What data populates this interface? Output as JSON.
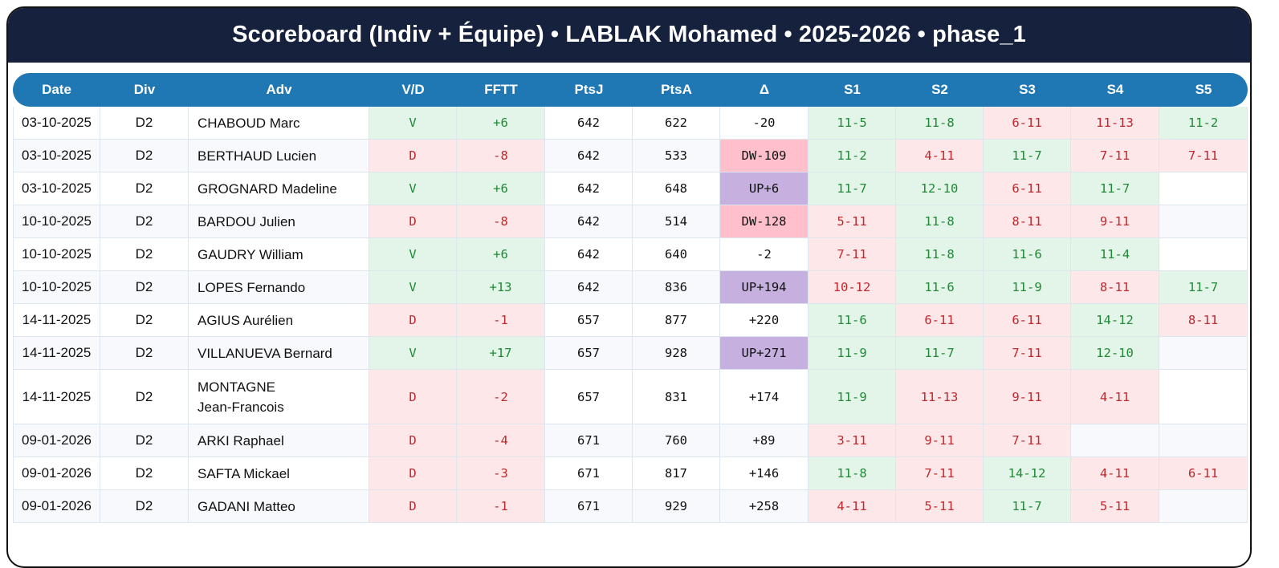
{
  "header": {
    "title": "Scoreboard (Indiv + Équipe) • LABLAK Mohamed • 2025-2026 • phase_1"
  },
  "colors": {
    "title_bg": "#15213d",
    "header_bg": "#1f77b4",
    "win_bg": "#e3f4e8",
    "win_text": "#1f8a35",
    "loss_bg": "#fde7e8",
    "loss_text": "#c0282d",
    "delta_dw_bg": "#ffc0cb",
    "delta_up_bg": "#c5b0e0"
  },
  "table": {
    "columns": [
      "Date",
      "Div",
      "Adv",
      "V/D",
      "FFTT",
      "PtsJ",
      "PtsA",
      "Δ",
      "S1",
      "S2",
      "S3",
      "S4",
      "S5"
    ],
    "rows": [
      {
        "date": "03-10-2025",
        "div": "D2",
        "adv": "CHABOUD Marc",
        "vd": "V",
        "fftt": "+6",
        "ptsj": "642",
        "ptsa": "622",
        "delta": "-20",
        "delta_tag": "",
        "sets": [
          "11-5",
          "11-8",
          "6-11",
          "11-13",
          "11-2"
        ]
      },
      {
        "date": "03-10-2025",
        "div": "D2",
        "adv": "BERTHAUD Lucien",
        "vd": "D",
        "fftt": "-8",
        "ptsj": "642",
        "ptsa": "533",
        "delta": "DW-109",
        "delta_tag": "dw",
        "sets": [
          "11-2",
          "4-11",
          "11-7",
          "7-11",
          "7-11"
        ]
      },
      {
        "date": "03-10-2025",
        "div": "D2",
        "adv": "GROGNARD Madeline",
        "vd": "V",
        "fftt": "+6",
        "ptsj": "642",
        "ptsa": "648",
        "delta": "UP+6",
        "delta_tag": "up",
        "sets": [
          "11-7",
          "12-10",
          "6-11",
          "11-7",
          ""
        ]
      },
      {
        "date": "10-10-2025",
        "div": "D2",
        "adv": "BARDOU Julien",
        "vd": "D",
        "fftt": "-8",
        "ptsj": "642",
        "ptsa": "514",
        "delta": "DW-128",
        "delta_tag": "dw",
        "sets": [
          "5-11",
          "11-8",
          "8-11",
          "9-11",
          ""
        ]
      },
      {
        "date": "10-10-2025",
        "div": "D2",
        "adv": "GAUDRY William",
        "vd": "V",
        "fftt": "+6",
        "ptsj": "642",
        "ptsa": "640",
        "delta": "-2",
        "delta_tag": "",
        "sets": [
          "7-11",
          "11-8",
          "11-6",
          "11-4",
          ""
        ]
      },
      {
        "date": "10-10-2025",
        "div": "D2",
        "adv": "LOPES Fernando",
        "vd": "V",
        "fftt": "+13",
        "ptsj": "642",
        "ptsa": "836",
        "delta": "UP+194",
        "delta_tag": "up",
        "sets": [
          "10-12",
          "11-6",
          "11-9",
          "8-11",
          "11-7"
        ]
      },
      {
        "date": "14-11-2025",
        "div": "D2",
        "adv": "AGIUS Aurélien",
        "vd": "D",
        "fftt": "-1",
        "ptsj": "657",
        "ptsa": "877",
        "delta": "+220",
        "delta_tag": "",
        "sets": [
          "11-6",
          "6-11",
          "6-11",
          "14-12",
          "8-11"
        ]
      },
      {
        "date": "14-11-2025",
        "div": "D2",
        "adv": "VILLANUEVA Bernard",
        "vd": "V",
        "fftt": "+17",
        "ptsj": "657",
        "ptsa": "928",
        "delta": "UP+271",
        "delta_tag": "up",
        "sets": [
          "11-9",
          "11-7",
          "7-11",
          "12-10",
          ""
        ]
      },
      {
        "date": "14-11-2025",
        "div": "D2",
        "adv": "MONTAGNE Jean-Francois",
        "vd": "D",
        "fftt": "-2",
        "ptsj": "657",
        "ptsa": "831",
        "delta": "+174",
        "delta_tag": "",
        "sets": [
          "11-9",
          "11-13",
          "9-11",
          "4-11",
          ""
        ]
      },
      {
        "date": "09-01-2026",
        "div": "D2",
        "adv": "ARKI Raphael",
        "vd": "D",
        "fftt": "-4",
        "ptsj": "671",
        "ptsa": "760",
        "delta": "+89",
        "delta_tag": "",
        "sets": [
          "3-11",
          "9-11",
          "7-11",
          "",
          ""
        ]
      },
      {
        "date": "09-01-2026",
        "div": "D2",
        "adv": "SAFTA Mickael",
        "vd": "D",
        "fftt": "-3",
        "ptsj": "671",
        "ptsa": "817",
        "delta": "+146",
        "delta_tag": "",
        "sets": [
          "11-8",
          "7-11",
          "14-12",
          "4-11",
          "6-11"
        ]
      },
      {
        "date": "09-01-2026",
        "div": "D2",
        "adv": "GADANI Matteo",
        "vd": "D",
        "fftt": "-1",
        "ptsj": "671",
        "ptsa": "929",
        "delta": "+258",
        "delta_tag": "",
        "sets": [
          "4-11",
          "5-11",
          "11-7",
          "5-11",
          ""
        ]
      }
    ]
  }
}
